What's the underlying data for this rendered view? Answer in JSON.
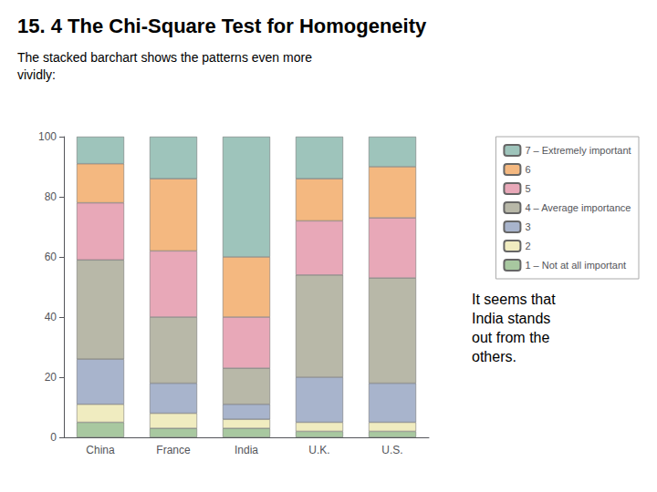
{
  "chart_data": {
    "type": "bar",
    "title": "15. 4 The Chi-Square Test for Homogeneity",
    "subtitle": "The stacked barchart shows the patterns even more\nvividly:",
    "annotation": "It seems that\nIndia stands\nout from the\nothers.",
    "categories": [
      "China",
      "France",
      "India",
      "U.K.",
      "U.S."
    ],
    "series": [
      {
        "name": "1 – Not at all important",
        "color": "#A8C8A0",
        "values": [
          5,
          3,
          3,
          2,
          2
        ]
      },
      {
        "name": "2",
        "color": "#F0ECC0",
        "values": [
          6,
          5,
          3,
          3,
          3
        ]
      },
      {
        "name": "3",
        "color": "#A8B4CC",
        "values": [
          15,
          10,
          5,
          15,
          13
        ]
      },
      {
        "name": "4 – Average importance",
        "color": "#B8B8A8",
        "values": [
          33,
          22,
          12,
          34,
          35
        ]
      },
      {
        "name": "5",
        "color": "#E8A8B8",
        "values": [
          19,
          22,
          17,
          18,
          20
        ]
      },
      {
        "name": "6",
        "color": "#F4B880",
        "values": [
          13,
          24,
          20,
          14,
          17
        ]
      },
      {
        "name": "7 – Extremely important",
        "color": "#9EC4BB",
        "values": [
          9,
          14,
          40,
          14,
          10
        ]
      }
    ],
    "ylim": [
      0,
      100
    ],
    "yticks": [
      0,
      20,
      40,
      60,
      80,
      100
    ],
    "stacked": true,
    "legend": "right",
    "grid": false
  }
}
